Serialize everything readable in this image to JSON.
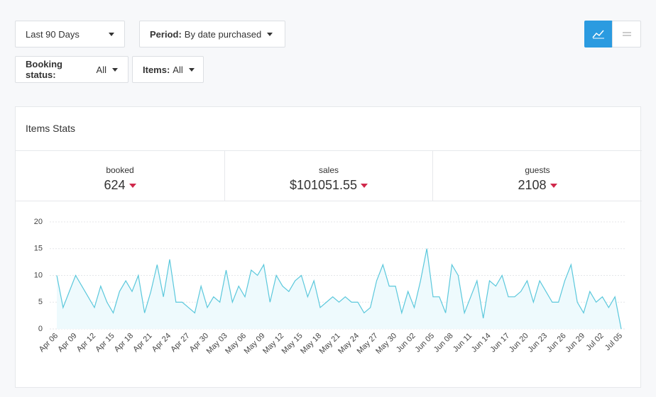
{
  "filters": {
    "range": "Last 90 Days",
    "period": {
      "label": "Period:",
      "value": "By date purchased"
    },
    "booking_status": {
      "label": "Booking status:",
      "value": "All"
    },
    "items": {
      "label": "Items:",
      "value": "All"
    }
  },
  "card": {
    "title": "Items Stats",
    "stats": [
      {
        "label": "booked",
        "value": "624"
      },
      {
        "label": "sales",
        "value": "$101051.55"
      },
      {
        "label": "guests",
        "value": "2108"
      }
    ]
  },
  "chart_data": {
    "type": "line",
    "categories": [
      "Apr 06",
      null,
      null,
      "Apr 09",
      null,
      null,
      "Apr 12",
      null,
      null,
      "Apr 15",
      null,
      null,
      "Apr 18",
      null,
      null,
      "Apr 21",
      null,
      null,
      "Apr 24",
      null,
      null,
      "Apr 27",
      null,
      null,
      "Apr 30",
      null,
      null,
      "May 03",
      null,
      null,
      "May 06",
      null,
      null,
      "May 09",
      null,
      null,
      "May 12",
      null,
      null,
      "May 15",
      null,
      null,
      "May 18",
      null,
      null,
      "May 21",
      null,
      null,
      "May 24",
      null,
      null,
      "May 27",
      null,
      null,
      "May 30",
      null,
      null,
      "Jun 02",
      null,
      null,
      "Jun 05",
      null,
      null,
      "Jun 08",
      null,
      null,
      "Jun 11",
      null,
      null,
      "Jun 14",
      null,
      null,
      "Jun 17",
      null,
      null,
      "Jun 20",
      null,
      null,
      "Jun 23",
      null,
      null,
      "Jun 26",
      null,
      null,
      "Jun 29",
      null,
      null,
      "Jul 02",
      null,
      null,
      "Jul 05"
    ],
    "values": [
      10,
      4,
      7,
      10,
      8,
      6,
      4,
      8,
      5,
      3,
      7,
      9,
      7,
      10,
      3,
      7,
      12,
      6,
      13,
      5,
      5,
      4,
      3,
      8,
      4,
      6,
      5,
      11,
      5,
      8,
      6,
      11,
      10,
      12,
      5,
      10,
      8,
      7,
      9,
      10,
      6,
      9,
      4,
      5,
      6,
      5,
      6,
      5,
      5,
      3,
      4,
      9,
      12,
      8,
      8,
      3,
      7,
      4,
      9,
      15,
      6,
      6,
      3,
      12,
      10,
      3,
      6,
      9,
      2,
      9,
      8,
      10,
      6,
      6,
      7,
      9,
      5,
      9,
      7,
      5,
      5,
      9,
      12,
      5,
      3,
      7,
      5,
      6,
      4,
      6,
      0
    ],
    "color": "#5bc8dc",
    "ylim": [
      0,
      20
    ],
    "yticks": [
      0,
      5,
      10,
      15,
      20
    ],
    "grid": true
  }
}
